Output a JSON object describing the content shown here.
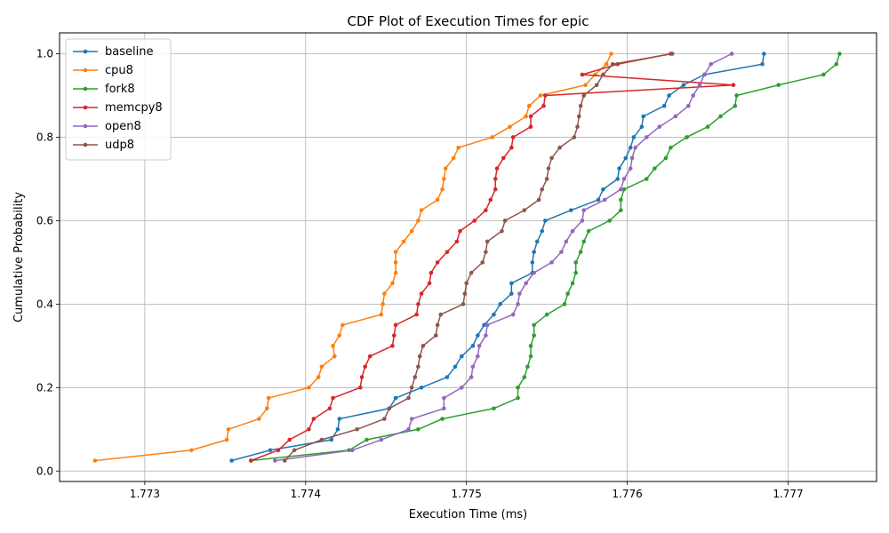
{
  "chart_data": {
    "type": "line",
    "title": "CDF Plot of Execution Times for epic",
    "xlabel": "Execution Time (ms)",
    "ylabel": "Cumulative Probability",
    "xlim": [
      1.77247,
      1.77755
    ],
    "ylim": [
      -0.025,
      1.05
    ],
    "xticks": [
      1.773,
      1.774,
      1.775,
      1.776,
      1.777
    ],
    "xtick_labels": [
      "1.773",
      "1.774",
      "1.775",
      "1.776",
      "1.777"
    ],
    "yticks": [
      0.0,
      0.2,
      0.4,
      0.6,
      0.8,
      1.0
    ],
    "ytick_labels": [
      "0.0",
      "0.2",
      "0.4",
      "0.6",
      "0.8",
      "1.0"
    ],
    "grid": true,
    "legend_position": "upper-left",
    "y": [
      0.025,
      0.05,
      0.075,
      0.1,
      0.125,
      0.15,
      0.175,
      0.2,
      0.225,
      0.25,
      0.275,
      0.3,
      0.325,
      0.35,
      0.375,
      0.4,
      0.425,
      0.45,
      0.475,
      0.5,
      0.525,
      0.55,
      0.575,
      0.6,
      0.625,
      0.65,
      0.675,
      0.7,
      0.725,
      0.75,
      0.775,
      0.8,
      0.825,
      0.85,
      0.875,
      0.9,
      0.925,
      0.95,
      0.975,
      1.0
    ],
    "series": [
      {
        "name": "baseline",
        "color": "#1f77b4",
        "x": [
          1.77354,
          1.77378,
          1.77416,
          1.7742,
          1.77421,
          1.77452,
          1.77456,
          1.77472,
          1.77488,
          1.77493,
          1.77497,
          1.77504,
          1.77507,
          1.77511,
          1.77517,
          1.77521,
          1.77528,
          1.77528,
          1.77541,
          1.77541,
          1.77542,
          1.77544,
          1.77547,
          1.77549,
          1.77565,
          1.77582,
          1.77585,
          1.77594,
          1.77595,
          1.77599,
          1.77602,
          1.77604,
          1.77609,
          1.7761,
          1.77623,
          1.77626,
          1.77635,
          1.77648,
          1.77684,
          1.77685
        ]
      },
      {
        "name": "cpu8",
        "color": "#ff7f0e",
        "x": [
          1.77269,
          1.77329,
          1.77351,
          1.77352,
          1.77371,
          1.77376,
          1.77377,
          1.77402,
          1.77408,
          1.7741,
          1.77418,
          1.77417,
          1.77421,
          1.77423,
          1.77447,
          1.77448,
          1.77449,
          1.77454,
          1.77456,
          1.77456,
          1.77456,
          1.77461,
          1.77466,
          1.7747,
          1.77472,
          1.77482,
          1.77485,
          1.77486,
          1.77487,
          1.77492,
          1.77495,
          1.77516,
          1.77527,
          1.77537,
          1.77539,
          1.77546,
          1.77574,
          1.7758,
          1.77587,
          1.7759
        ]
      },
      {
        "name": "fork8",
        "color": "#2ca02c",
        "x": [
          1.77366,
          1.77427,
          1.77438,
          1.7747,
          1.77485,
          1.77517,
          1.77532,
          1.77532,
          1.77536,
          1.77538,
          1.7754,
          1.7754,
          1.77542,
          1.77542,
          1.7755,
          1.77561,
          1.77563,
          1.77566,
          1.77568,
          1.77568,
          1.77571,
          1.77573,
          1.77576,
          1.77589,
          1.77596,
          1.77596,
          1.77598,
          1.77612,
          1.77617,
          1.77624,
          1.77627,
          1.77637,
          1.7765,
          1.77658,
          1.77667,
          1.77668,
          1.77694,
          1.77722,
          1.7773,
          1.77732
        ]
      },
      {
        "name": "memcpy8",
        "color": "#d62728",
        "x": [
          1.77366,
          1.77383,
          1.7739,
          1.77402,
          1.77405,
          1.77415,
          1.77417,
          1.77434,
          1.77435,
          1.77437,
          1.7744,
          1.77454,
          1.77455,
          1.77456,
          1.77469,
          1.7747,
          1.77472,
          1.77477,
          1.77478,
          1.77482,
          1.77488,
          1.77494,
          1.77496,
          1.77505,
          1.77512,
          1.77515,
          1.77518,
          1.77518,
          1.77519,
          1.77523,
          1.77528,
          1.77529,
          1.7754,
          1.7754,
          1.77548,
          1.77549,
          1.77666,
          1.77572,
          1.77594,
          1.77627
        ]
      },
      {
        "name": "open8",
        "color": "#9467bd",
        "x": [
          1.77381,
          1.77429,
          1.77447,
          1.77464,
          1.77466,
          1.77486,
          1.77486,
          1.77497,
          1.77503,
          1.77504,
          1.77507,
          1.77508,
          1.77512,
          1.77513,
          1.77529,
          1.77532,
          1.77533,
          1.77537,
          1.77542,
          1.77553,
          1.77559,
          1.77562,
          1.77566,
          1.77572,
          1.77573,
          1.77586,
          1.77596,
          1.77598,
          1.77602,
          1.77603,
          1.77605,
          1.77612,
          1.7762,
          1.7763,
          1.77638,
          1.77641,
          1.77645,
          1.77648,
          1.77652,
          1.77665
        ]
      },
      {
        "name": "udp8",
        "color": "#8c564b",
        "x": [
          1.77387,
          1.77393,
          1.7741,
          1.77432,
          1.77449,
          1.77452,
          1.77464,
          1.77466,
          1.77468,
          1.7747,
          1.77471,
          1.77473,
          1.77481,
          1.77482,
          1.77484,
          1.77498,
          1.77499,
          1.775,
          1.77503,
          1.7751,
          1.77512,
          1.77513,
          1.77522,
          1.77524,
          1.77536,
          1.77545,
          1.77547,
          1.7755,
          1.77551,
          1.77553,
          1.77558,
          1.77567,
          1.77569,
          1.7757,
          1.77571,
          1.77573,
          1.77581,
          1.77585,
          1.77591,
          1.77628
        ]
      }
    ]
  }
}
